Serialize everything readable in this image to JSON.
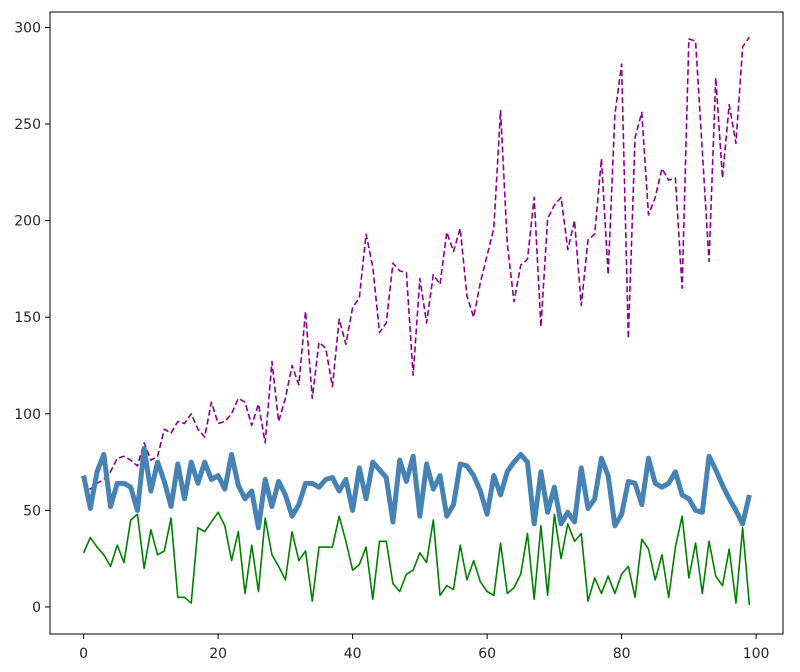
{
  "chart_data": {
    "type": "line",
    "title": "",
    "xlabel": "",
    "ylabel": "",
    "xlim": [
      -5,
      104
    ],
    "ylim": [
      -14,
      308
    ],
    "xticks": [
      0,
      20,
      40,
      60,
      80,
      100
    ],
    "yticks": [
      0,
      50,
      100,
      150,
      200,
      250,
      300
    ],
    "grid": false,
    "series": [
      {
        "color": "#8b008b",
        "style": "dashed",
        "width": "thin",
        "x": [
          0,
          1,
          2,
          3,
          4,
          5,
          6,
          7,
          8,
          9,
          10,
          11,
          12,
          13,
          14,
          15,
          16,
          17,
          18,
          19,
          20,
          21,
          22,
          23,
          24,
          25,
          26,
          27,
          28,
          29,
          30,
          31,
          32,
          33,
          34,
          35,
          36,
          37,
          38,
          39,
          40,
          41,
          42,
          43,
          44,
          45,
          46,
          47,
          48,
          49,
          50,
          51,
          52,
          53,
          54,
          55,
          56,
          57,
          58,
          59,
          60,
          61,
          62,
          63,
          64,
          65,
          66,
          67,
          68,
          69,
          70,
          71,
          72,
          73,
          74,
          75,
          76,
          77,
          78,
          79,
          80,
          81,
          82,
          83,
          84,
          85,
          86,
          87,
          88,
          89,
          90,
          91,
          92,
          93,
          94,
          95,
          96,
          97,
          98,
          99
        ],
        "values": [
          65,
          61,
          64,
          66,
          70,
          77,
          78,
          76,
          73,
          85,
          76,
          78,
          92,
          90,
          96,
          95,
          100,
          92,
          88,
          106,
          95,
          96,
          100,
          108,
          106,
          94,
          105,
          85,
          127,
          96,
          108,
          125,
          115,
          153,
          108,
          137,
          134,
          114,
          149,
          136,
          155,
          160,
          193,
          176,
          142,
          147,
          178,
          174,
          173,
          120,
          170,
          147,
          172,
          167,
          194,
          184,
          196,
          161,
          150,
          168,
          182,
          196,
          257,
          188,
          158,
          177,
          180,
          212,
          145,
          201,
          208,
          212,
          185,
          200,
          156,
          190,
          193,
          232,
          172,
          255,
          281,
          139,
          243,
          256,
          203,
          212,
          227,
          221,
          222,
          165,
          294,
          293,
          236,
          179,
          274,
          222,
          260,
          240,
          290,
          295
        ]
      },
      {
        "color": "#4682b4",
        "style": "solid",
        "width": "thick",
        "x": [
          0,
          1,
          2,
          3,
          4,
          5,
          6,
          7,
          8,
          9,
          10,
          11,
          12,
          13,
          14,
          15,
          16,
          17,
          18,
          19,
          20,
          21,
          22,
          23,
          24,
          25,
          26,
          27,
          28,
          29,
          30,
          31,
          32,
          33,
          34,
          35,
          36,
          37,
          38,
          39,
          40,
          41,
          42,
          43,
          44,
          45,
          46,
          47,
          48,
          49,
          50,
          51,
          52,
          53,
          54,
          55,
          56,
          57,
          58,
          59,
          60,
          61,
          62,
          63,
          64,
          65,
          66,
          67,
          68,
          69,
          70,
          71,
          72,
          73,
          74,
          75,
          76,
          77,
          78,
          79,
          80,
          81,
          82,
          83,
          84,
          85,
          86,
          87,
          88,
          89,
          90,
          91,
          92,
          93,
          94,
          95,
          96,
          97,
          98,
          99
        ],
        "values": [
          68,
          51,
          70,
          79,
          52,
          64,
          64,
          62,
          50,
          82,
          60,
          75,
          65,
          52,
          74,
          56,
          75,
          64,
          75,
          66,
          68,
          61,
          79,
          63,
          56,
          60,
          41,
          66,
          52,
          65,
          58,
          47,
          53,
          64,
          64,
          62,
          66,
          67,
          60,
          66,
          50,
          72,
          56,
          75,
          71,
          67,
          44,
          76,
          65,
          78,
          47,
          74,
          61,
          68,
          47,
          53,
          74,
          73,
          68,
          60,
          48,
          68,
          58,
          70,
          75,
          79,
          75,
          43,
          70,
          49,
          62,
          43,
          49,
          44,
          72,
          51,
          56,
          77,
          68,
          42,
          48,
          65,
          64,
          53,
          77,
          64,
          62,
          64,
          70,
          58,
          56,
          50,
          49,
          78,
          71,
          63,
          56,
          50,
          43,
          58
        ]
      },
      {
        "color": "#008000",
        "style": "solid",
        "width": "thin",
        "x": [
          0,
          1,
          2,
          3,
          4,
          5,
          6,
          7,
          8,
          9,
          10,
          11,
          12,
          13,
          14,
          15,
          16,
          17,
          18,
          19,
          20,
          21,
          22,
          23,
          24,
          25,
          26,
          27,
          28,
          29,
          30,
          31,
          32,
          33,
          34,
          35,
          36,
          37,
          38,
          39,
          40,
          41,
          42,
          43,
          44,
          45,
          46,
          47,
          48,
          49,
          50,
          51,
          52,
          53,
          54,
          55,
          56,
          57,
          58,
          59,
          60,
          61,
          62,
          63,
          64,
          65,
          66,
          67,
          68,
          69,
          70,
          71,
          72,
          73,
          74,
          75,
          76,
          77,
          78,
          79,
          80,
          81,
          82,
          83,
          84,
          85,
          86,
          87,
          88,
          89,
          90,
          91,
          92,
          93,
          94,
          95,
          96,
          97,
          98,
          99
        ],
        "values": [
          28,
          36,
          31,
          27,
          21,
          32,
          23,
          45,
          48,
          20,
          40,
          27,
          29,
          46,
          5,
          5,
          2,
          41,
          39,
          44,
          49,
          42,
          24,
          39,
          7,
          32,
          8,
          46,
          27,
          21,
          14,
          39,
          24,
          29,
          3,
          31,
          31,
          31,
          47,
          34,
          19,
          22,
          31,
          4,
          34,
          34,
          12,
          8,
          17,
          19,
          28,
          23,
          45,
          6,
          11,
          9,
          32,
          14,
          24,
          13,
          8,
          6,
          33,
          7,
          10,
          17,
          38,
          4,
          42,
          6,
          48,
          25,
          43,
          34,
          38,
          3,
          15,
          7,
          16,
          7,
          17,
          21,
          5,
          35,
          30,
          14,
          27,
          5,
          31,
          47,
          15,
          33,
          7,
          34,
          16,
          11,
          30,
          2,
          41,
          1
        ]
      }
    ]
  }
}
